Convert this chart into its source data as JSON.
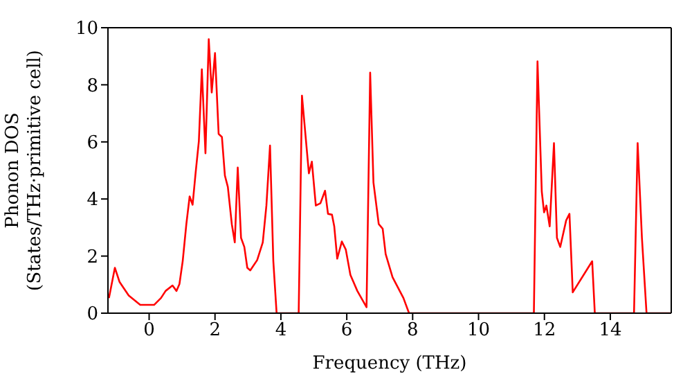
{
  "chart_data": {
    "type": "line",
    "xlabel": "Frequency (THz)",
    "ylabel": "Phonon DOS\n(States/THz·primitive cell)",
    "x": [
      -1.22,
      -1.04,
      -0.9,
      -0.62,
      -0.27,
      0.15,
      0.36,
      0.5,
      0.71,
      0.83,
      0.92,
      1.02,
      1.13,
      1.23,
      1.32,
      1.41,
      1.51,
      1.6,
      1.71,
      1.81,
      1.9,
      2.0,
      2.11,
      2.21,
      2.3,
      2.39,
      2.51,
      2.6,
      2.69,
      2.79,
      2.89,
      2.98,
      3.07,
      3.28,
      3.45,
      3.56,
      3.67,
      3.77,
      3.87,
      4.54,
      4.64,
      4.85,
      4.94,
      5.06,
      5.2,
      5.34,
      5.43,
      5.55,
      5.62,
      5.71,
      5.85,
      5.97,
      6.11,
      6.32,
      6.6,
      6.71,
      6.81,
      6.97,
      7.09,
      7.18,
      7.39,
      7.72,
      7.89,
      11.68,
      11.79,
      11.92,
      11.99,
      12.06,
      12.16,
      12.29,
      12.38,
      12.48,
      12.66,
      12.76,
      12.86,
      13.45,
      13.53,
      14.72,
      14.83,
      14.96,
      15.1,
      15.85
    ],
    "series": [
      {
        "color": "#ff0000",
        "values": [
          0.53,
          1.59,
          1.1,
          0.62,
          0.29,
          0.29,
          0.53,
          0.78,
          0.97,
          0.78,
          1.02,
          1.83,
          3.12,
          4.09,
          3.8,
          4.9,
          6.03,
          8.54,
          5.6,
          9.6,
          7.73,
          9.11,
          6.28,
          6.17,
          4.82,
          4.42,
          3.12,
          2.48,
          5.1,
          2.64,
          2.32,
          1.59,
          1.5,
          1.86,
          2.48,
          3.77,
          5.87,
          1.83,
          0,
          0,
          7.62,
          4.9,
          5.31,
          3.77,
          3.85,
          4.29,
          3.48,
          3.45,
          3.04,
          1.91,
          2.51,
          2.23,
          1.34,
          0.78,
          0.21,
          8.43,
          4.58,
          3.12,
          2.96,
          2.07,
          1.26,
          0.53,
          0,
          0,
          8.82,
          4.26,
          3.53,
          3.77,
          3.04,
          5.96,
          2.64,
          2.32,
          3.25,
          3.48,
          0.73,
          1.82,
          0,
          0,
          5.96,
          2.64,
          0,
          0
        ]
      }
    ],
    "xlim": [
      -1.25,
      15.85
    ],
    "xticks": [
      0,
      2,
      4,
      6,
      8,
      10,
      12,
      14
    ],
    "ylim": [
      0,
      10
    ],
    "yticks": [
      0,
      2,
      4,
      6,
      8,
      10
    ],
    "grid": false,
    "legend": false,
    "marker": "none",
    "line_style": "solid"
  }
}
